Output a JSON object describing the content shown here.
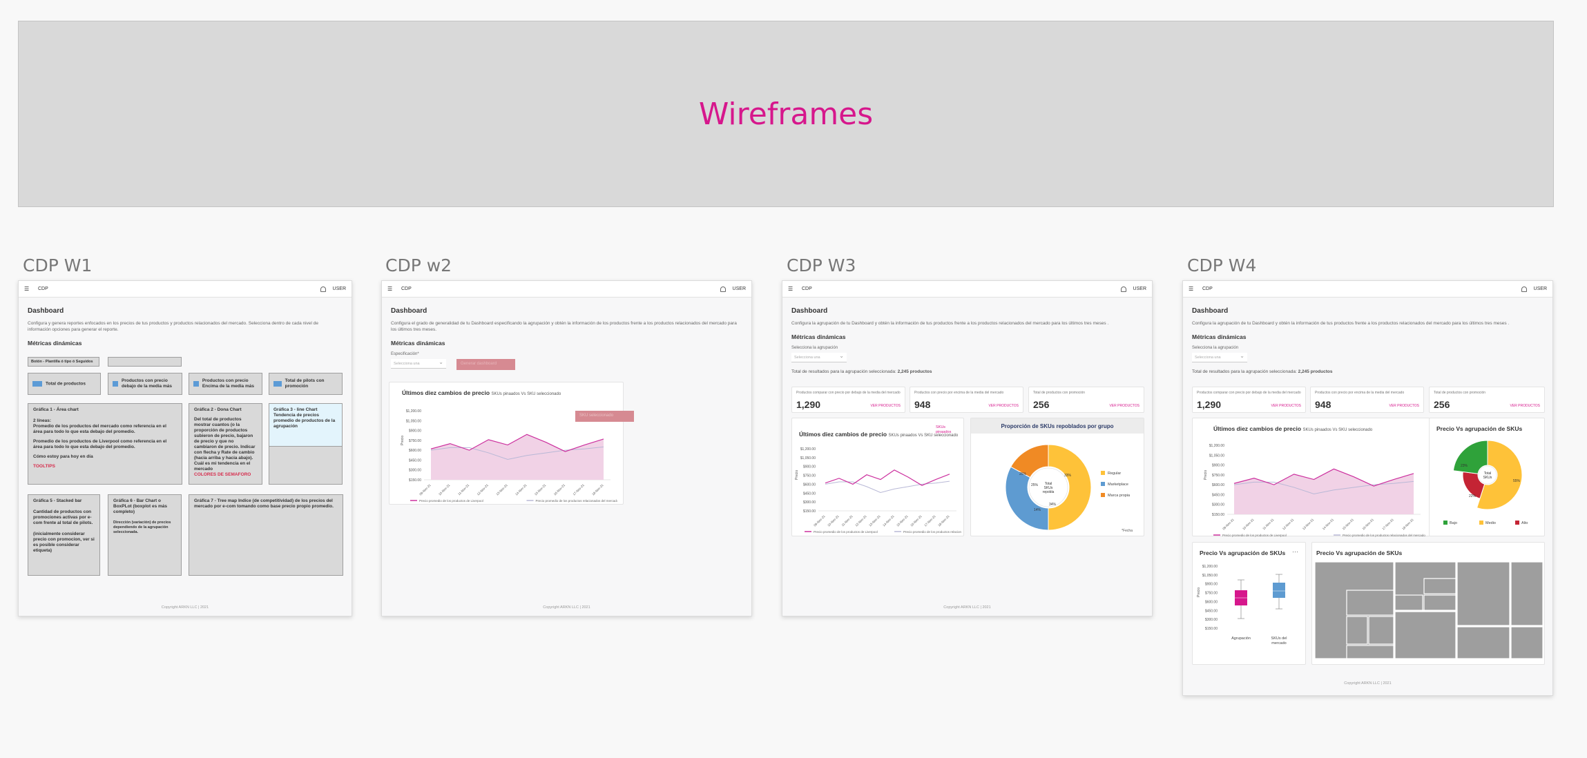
{
  "banner": {
    "title": "Wireframes"
  },
  "common": {
    "app_name": "CDP",
    "user": "USER",
    "dashboard_title": "Dashboard",
    "metrics_title": "Métricas dinámicas",
    "copyright": "Copyright ARKN LLC | 2021",
    "select_placeholder": "Selecciona una",
    "price_axis": "Precio",
    "legend_client": "Precio promedio de los productos de Liverpool",
    "legend_market": "Precio promedio de los productos relacionados del mercado",
    "y_ticks": [
      "$1,200.00",
      "$1,050.00",
      "$900.00",
      "$750.00",
      "$600.00",
      "$450.00",
      "$300.00",
      "$150.00"
    ],
    "dates": [
      "09-Nov-21",
      "10-Nov-21",
      "11-Nov-21",
      "12-Nov-21",
      "13-Nov-21",
      "14-Nov-21",
      "15-Nov-21",
      "16-Nov-21",
      "17-Nov-21",
      "18-Nov-21"
    ]
  },
  "w1": {
    "frame_title": "CDP W1",
    "desc": "Configura y genera reportes enfocados en los precios de tus productos y productos relacionados del mercado. Selecciona dentro de cada nivel de información opciones para generar el reporte.",
    "button_label": "Botón - Plantilla ó tipo ó Seguidos",
    "kpis": [
      "Total de productos",
      "Productos con precio debajo de la media más",
      "Productos con precio Encima de la media más",
      "Total de pilots con promoción"
    ],
    "g1_title": "Gráfica 1 - Área chart",
    "g1_lines": [
      "2 líneas:",
      "Promedio de los productos del mercado como referencia en el área para todo lo que esta debajo del promedio.",
      "Promedio de los productos de Liverpool como referencia en el área para todo lo que esta debajo del promedio.",
      "Cómo estoy para hoy en día"
    ],
    "g1_tooltip": "TOOLTIPS",
    "g2_title": "Gráfica 2 - Dona Chart",
    "g2_text": "Del total de productos mostrar cuantos (o la proporción de productos subieron de precio, bajaron de precio y que no cambiaron de precio. Indicar con flecha y Rate de cambio (hacia arriba y hacia abajo). Cuál es mi tendencia en el mercado",
    "g2_red": "COLORES DE SEMAFORO",
    "g3_title": "Gráfica 3 - line Chart",
    "g3_text": "Tendencia de precios promedio de productos de la agrupación",
    "g5_title": "Gráfica 5 - Stacked bar",
    "g5_text": "Cantidad de productos con promociones  activas por e-com frente al total de pilots.",
    "g5_text2": "(inicialmente considerar precio con promocion, ver si es posible considerar etiqueta)",
    "g6_title": "Gráfica 6 - Bar Chart o BoxPLot (boxplot es más completo)",
    "g6_text": "Dirección (variación) de precios dependiendo de la agrupación seleccionada.",
    "g7_title": "Gráfica 7 - Tree map Indice (de competitividad) de los precios del mercado por e-com tomando como base precio propio promedio."
  },
  "w2": {
    "frame_title": "CDP w2",
    "desc": "Configura el grado de generalidad de tu Dashboard especificando la agrupación y obtén la información de los productos frente a los productos relacionados del mercado para los últimos tres meses.",
    "spec_label": "Especificación*",
    "button": "Generar dashboard",
    "chart_title": "Últimos diez cambios de precio",
    "chart_sub": "SKUs pinaados Vs SKU seleccionado",
    "float_label": "SKU seleccionado"
  },
  "w3": {
    "frame_title": "CDP W3",
    "desc": "Configura la agrupación de tu Dashboard  y obtén la información de tus productos frente a los productos relacionados del mercado para los últimos tres meses .",
    "group_label": "Selecciona la agrupación",
    "results_text": "Total de resultados para la agrupación seleccionada:",
    "results_value": "2,245 productos",
    "kpis": [
      {
        "title": "Productos comparar con precio por debajo de la media del mercado",
        "value": "1,290",
        "link": "VER PRODUCTOS"
      },
      {
        "title": "Productos con precio por encima de la media del mercado",
        "value": "948",
        "link": "VER PRODUCTOS"
      },
      {
        "title": "Total de productos con promoción",
        "value": "256",
        "link": "VER PRODUCTOS"
      }
    ],
    "chart_title": "Últimos diez cambios de precio",
    "chart_sub": "SKUs pinaados Vs SKU seleccionado",
    "sku_tag": "SKUs pinaados",
    "donut_title": "Proporción de SKUs repoblados por grupo",
    "donut_center": "Total SKUs repobla",
    "donut_legend": [
      "Regular",
      "Marketplace",
      "Marca propia"
    ],
    "donut_pct": [
      "33%",
      "25%",
      "14%",
      "25%",
      "34%"
    ],
    "donut_note": "*Fecha"
  },
  "w4": {
    "frame_title": "CDP W4",
    "desc": "Configura la agrupación de tu Dashboard  y obtén la información de tus productos frente a los productos relacionados del mercado para los últimos tres meses .",
    "group_label": "Selecciona la agrupación",
    "results_text": "Total de resultados para la agrupación seleccionada:",
    "results_value": "2,245 productos",
    "kpis": [
      {
        "title": "Productos comparar con precio por debajo de la media del mercado",
        "value": "1,290",
        "link": "VER PRODUCTOS"
      },
      {
        "title": "Productos con precio por encima de la media del mercado",
        "value": "948",
        "link": "VER PRODUCTOS"
      },
      {
        "title": "Total de productos con promoción",
        "value": "256",
        "link": "VER PRODUCTOS"
      }
    ],
    "chart_title": "Últimos diez cambios de precio",
    "chart_sub": "SKUs pinaados Vs SKU seleccionado",
    "donut_title": "Precio Vs agrupación de SKUs",
    "donut_center": "Total SKUs",
    "donut_pct": [
      "23%",
      "55%",
      "22%"
    ],
    "donut_legend": [
      "Bajo",
      "Medio",
      "Alto"
    ],
    "box_title": "Precio Vs agrupación de SKUs",
    "box_categories": [
      "Agrupación",
      "SKUs del mercado"
    ],
    "tree_title": "Precio Vs agrupación de SKUs"
  },
  "chart_data": [
    {
      "type": "area",
      "title": "Últimos diez cambios de precio",
      "ylabel": "Precio",
      "x": [
        "09-Nov-21",
        "10-Nov-21",
        "11-Nov-21",
        "12-Nov-21",
        "13-Nov-21",
        "14-Nov-21",
        "15-Nov-21",
        "16-Nov-21",
        "17-Nov-21",
        "18-Nov-21"
      ],
      "ylim": [
        150,
        1200
      ],
      "series": [
        {
          "name": "Precio promedio de los productos de Liverpool",
          "values": [
            620,
            700,
            600,
            760,
            680,
            840,
            720,
            580,
            680,
            770
          ]
        },
        {
          "name": "Precio promedio de los productos relacionados del mercado",
          "values": [
            600,
            640,
            640,
            560,
            460,
            520,
            560,
            600,
            620,
            650
          ]
        }
      ]
    },
    {
      "type": "pie",
      "title": "Proporción de SKUs repoblados por grupo",
      "labels": [
        "Regular",
        "Marketplace",
        "Marca propia"
      ],
      "values": [
        50,
        33,
        17
      ]
    },
    {
      "type": "pie",
      "title": "Precio Vs agrupación de SKUs",
      "labels": [
        "Bajo",
        "Medio",
        "Alto"
      ],
      "values": [
        23,
        55,
        22
      ]
    }
  ],
  "colors": {
    "accent": "#d6178c",
    "line_client": "#cc2f9e",
    "line_market": "#b8b8d6",
    "area": "#f1d2e6",
    "regular": "#fec239",
    "marketplace": "#5e9bd1",
    "marca": "#f08a24",
    "bajo": "#2fa23a",
    "medio": "#fec239",
    "alto": "#c42434"
  }
}
